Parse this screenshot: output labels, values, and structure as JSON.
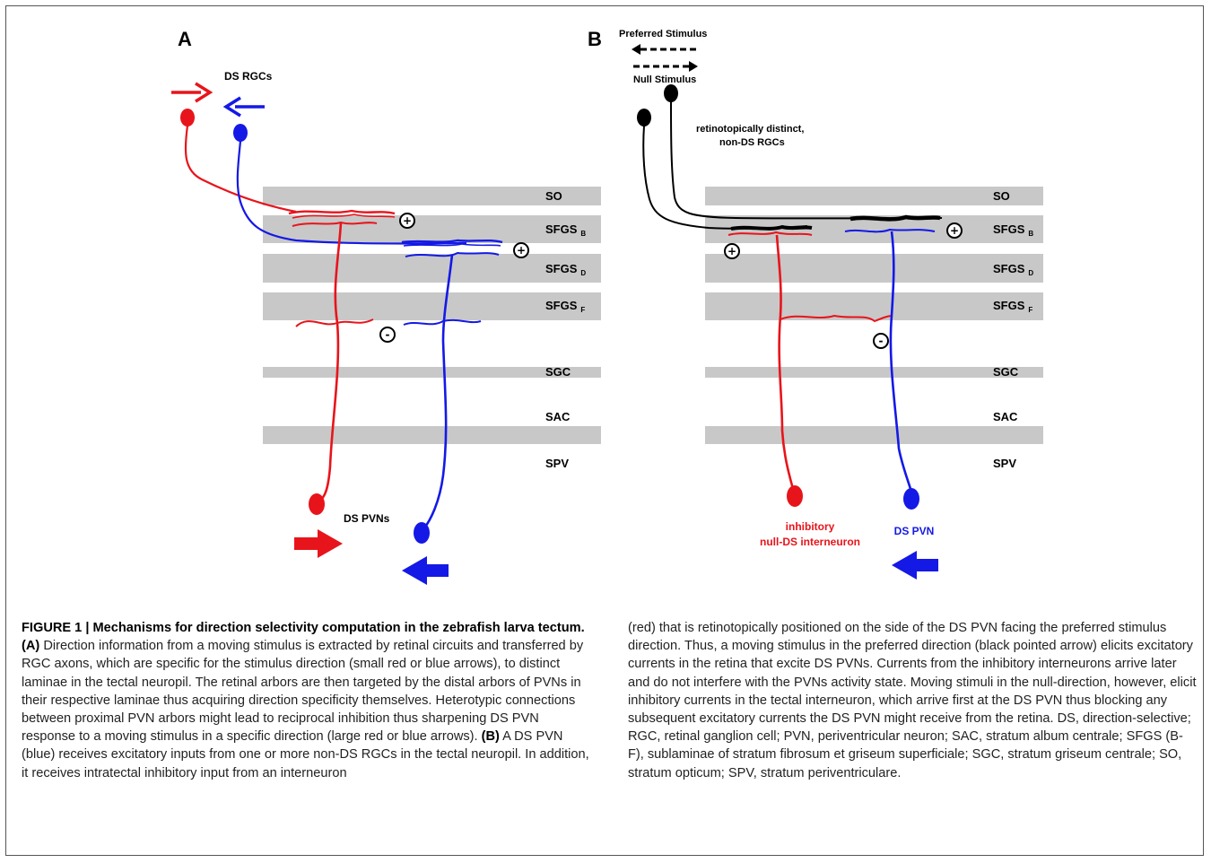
{
  "panel_a": {
    "letter": "A",
    "ds_rgcs": "DS RGCs",
    "ds_pvns": "DS PVNs",
    "signs": {
      "plus": "+",
      "minus": "-"
    }
  },
  "panel_b": {
    "letter": "B",
    "preferred_stimulus": "Preferred Stimulus",
    "null_stimulus": "Null Stimulus",
    "rgc_note_line1": "retinotopically distinct,",
    "rgc_note_line2": "non-DS RGCs",
    "interneuron_line1": "inhibitory",
    "interneuron_line2": "null-DS interneuron",
    "ds_pvn": "DS PVN"
  },
  "laminae": [
    {
      "name": "SO",
      "sub": ""
    },
    {
      "name": "SFGS",
      "sub": "B"
    },
    {
      "name": "SFGS",
      "sub": "D"
    },
    {
      "name": "SFGS",
      "sub": "F"
    },
    {
      "name": "SGC",
      "sub": ""
    },
    {
      "name": "SAC",
      "sub": ""
    },
    {
      "name": "SPV",
      "sub": ""
    }
  ],
  "colors": {
    "red": "#e8141b",
    "blue": "#1419e6",
    "black": "#000000",
    "lamina": "#c8c8c8"
  },
  "caption": {
    "heading": "FIGURE 1 | Mechanisms for direction selectivity computation in the zebrafish larva tectum.",
    "a_label": "(A)",
    "a_text": " Direction information from a moving stimulus is extracted by retinal circuits and transferred by RGC axons, which are specific for the stimulus direction (small red or blue arrows), to distinct laminae in the tectal neuropil. The retinal arbors are then targeted by the distal arbors of PVNs in their respective laminae thus acquiring direction specificity themselves. Heterotypic connections between proximal PVN arbors might lead to reciprocal inhibition thus sharpening DS PVN response to a moving stimulus in a specific direction (large red or blue arrows). ",
    "b_label": "(B)",
    "b_text_left": " A DS PVN (blue) receives excitatory inputs from one or more non-DS RGCs in the tectal neuropil. In addition, it receives intratectal inhibitory input from an interneuron",
    "right_text": "(red) that is retinotopically positioned on the side of the DS PVN facing the preferred stimulus direction. Thus, a moving stimulus in the preferred direction (black pointed arrow) elicits excitatory currents in the retina that excite DS PVNs. Currents from the inhibitory interneurons arrive later and do not interfere with the PVNs activity state. Moving stimuli in the null-direction, however, elicit inhibitory currents in the tectal interneuron, which arrive first at the DS PVN thus blocking any subsequent excitatory currents the DS PVN might receive from the retina. DS, direction-selective; RGC, retinal ganglion cell; PVN, periventricular neuron; SAC, stratum album centrale; SFGS (B-F), sublaminae of stratum fibrosum et griseum superficiale; SGC, stratum griseum centrale; SO, stratum opticum; SPV, stratum periventriculare."
  }
}
